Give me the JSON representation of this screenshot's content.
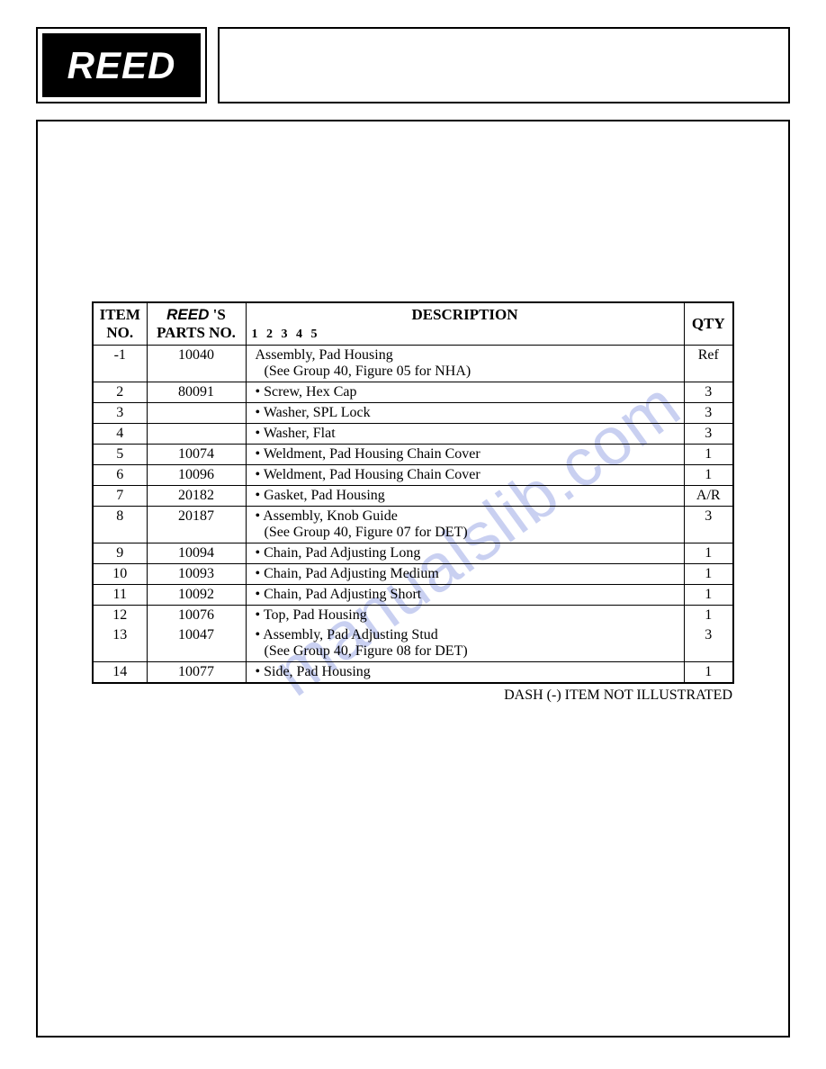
{
  "logo": {
    "text": "REED"
  },
  "watermark": {
    "text": "manualslib.com",
    "color": "#5b6fd6",
    "opacity": 0.32
  },
  "table": {
    "columns": {
      "item": {
        "line1": "ITEM",
        "line2": "NO."
      },
      "parts": {
        "prefix": "REED",
        "suffix": " 'S",
        "line2": "PARTS NO."
      },
      "desc": {
        "title": "DESCRIPTION",
        "sub": "1 2 3 4 5"
      },
      "qty": {
        "title": "QTY"
      }
    },
    "rows": [
      {
        "item": "-1",
        "parts": "10040",
        "desc": "Assembly, Pad Housing",
        "desc2": "(See Group 40, Figure 05 for NHA)",
        "qty": "Ref",
        "sep": true
      },
      {
        "item": "2",
        "parts": "80091",
        "desc": "• Screw, Hex Cap",
        "qty": "3",
        "sep": true
      },
      {
        "item": "3",
        "parts": "",
        "desc": "• Washer, SPL Lock",
        "qty": "3",
        "sep": true
      },
      {
        "item": "4",
        "parts": "",
        "desc": "• Washer, Flat",
        "qty": "3",
        "sep": true
      },
      {
        "item": "5",
        "parts": "10074",
        "desc": "• Weldment, Pad Housing Chain Cover",
        "qty": "1",
        "sep": true
      },
      {
        "item": "6",
        "parts": "10096",
        "desc": "• Weldment, Pad Housing Chain Cover",
        "qty": "1",
        "sep": true
      },
      {
        "item": "7",
        "parts": "20182",
        "desc": "• Gasket, Pad Housing",
        "qty": "A/R",
        "sep": true
      },
      {
        "item": "8",
        "parts": "20187",
        "desc": "• Assembly, Knob Guide",
        "desc2": "  (See Group 40, Figure 07 for DET)",
        "qty": "3",
        "sep": true
      },
      {
        "item": "9",
        "parts": "10094",
        "desc": "• Chain, Pad Adjusting Long",
        "qty": "1",
        "sep": true
      },
      {
        "item": "10",
        "parts": "10093",
        "desc": "• Chain, Pad Adjusting Medium",
        "qty": "1",
        "sep": true
      },
      {
        "item": "11",
        "parts": "10092",
        "desc": "• Chain, Pad Adjusting Short",
        "qty": "1",
        "sep": true
      },
      {
        "item": "12",
        "parts": "10076",
        "desc": "• Top, Pad Housing",
        "qty": "1",
        "sep": true
      },
      {
        "item": "13",
        "parts": "10047",
        "desc": "• Assembly, Pad Adjusting Stud",
        "desc2": "  (See Group 40, Figure 08 for DET)",
        "qty": "3",
        "sep": false
      },
      {
        "item": "14",
        "parts": "10077",
        "desc": "• Side, Pad Housing",
        "qty": "1",
        "sep": true
      }
    ],
    "footer": "DASH (-) ITEM NOT ILLUSTRATED"
  },
  "styling": {
    "page_bg": "#ffffff",
    "border_color": "#000000",
    "logo_bg": "#000000",
    "logo_fg": "#ffffff",
    "body_font": "Times New Roman",
    "header_fontsize": 17,
    "cell_fontsize": 16
  }
}
